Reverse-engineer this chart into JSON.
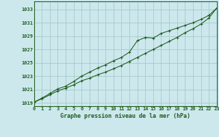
{
  "xlabel": "Graphe pression niveau de la mer (hPa)",
  "background_color": "#cce8ed",
  "grid_color": "#aacccc",
  "line_color": "#1e5c1e",
  "hours": [
    0,
    1,
    2,
    3,
    4,
    5,
    6,
    7,
    8,
    9,
    10,
    11,
    12,
    13,
    14,
    15,
    16,
    17,
    18,
    19,
    20,
    21,
    22,
    23
  ],
  "values_main": [
    1019.1,
    1019.6,
    1020.2,
    1020.8,
    1021.2,
    1021.7,
    1022.3,
    1022.7,
    1023.2,
    1023.6,
    1024.1,
    1024.6,
    1025.2,
    1025.8,
    1026.4,
    1027.0,
    1027.6,
    1028.2,
    1028.8,
    1029.5,
    1030.1,
    1030.8,
    1031.7,
    1033.2
  ],
  "values_secondary": [
    1019.1,
    1019.7,
    1020.4,
    1021.1,
    1021.5,
    1022.2,
    1023.0,
    1023.6,
    1024.2,
    1024.7,
    1025.3,
    1025.8,
    1026.6,
    1028.3,
    1028.8,
    1028.7,
    1029.4,
    1029.8,
    1030.2,
    1030.6,
    1031.0,
    1031.5,
    1032.1,
    1033.2
  ],
  "ylim": [
    1018.5,
    1034.2
  ],
  "yticks": [
    1019,
    1021,
    1023,
    1025,
    1027,
    1029,
    1031,
    1033
  ],
  "xlim": [
    0,
    23
  ],
  "xticks": [
    0,
    1,
    2,
    3,
    4,
    5,
    6,
    7,
    8,
    9,
    10,
    11,
    12,
    13,
    14,
    15,
    16,
    17,
    18,
    19,
    20,
    21,
    22,
    23
  ]
}
